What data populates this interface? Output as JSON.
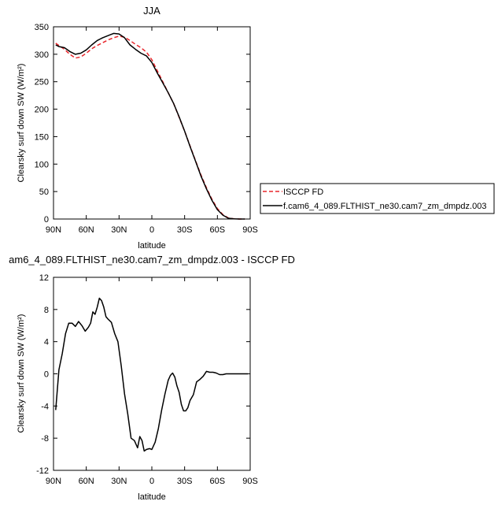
{
  "chart_data": [
    {
      "type": "line",
      "title": "JJA",
      "xlabel": "latitude",
      "ylabel": "Clearsky surf down SW (W/m²)",
      "ylim": [
        0,
        350
      ],
      "yticks": [
        0,
        50,
        100,
        150,
        200,
        250,
        300,
        350
      ],
      "xlim": [
        90,
        -90
      ],
      "xticks": [
        90,
        60,
        30,
        0,
        -30,
        -60,
        -90
      ],
      "xticklabels": [
        "90N",
        "60N",
        "30N",
        "0",
        "30S",
        "60S",
        "90S"
      ],
      "legend": {
        "placement": "right",
        "entries": [
          "ISCCP FD",
          "f.cam6_4_089.FLTHIST_ne30.cam7_zm_dmpdz.003"
        ]
      },
      "series": [
        {
          "name": "ISCCP FD",
          "color": "#e8252a",
          "dash": true,
          "x": [
            88,
            85,
            80,
            75,
            70,
            65,
            60,
            55,
            50,
            45,
            40,
            35,
            30,
            25,
            20,
            15,
            10,
            5,
            0,
            -5,
            -10,
            -15,
            -20,
            -25,
            -30,
            -35,
            -40,
            -45,
            -50,
            -55,
            -60,
            -65,
            -70,
            -75,
            -80,
            -85
          ],
          "values": [
            320,
            316,
            309,
            300,
            293,
            295,
            302,
            310,
            316,
            321,
            326,
            330,
            333,
            331,
            325,
            318,
            312,
            304,
            290,
            270,
            250,
            230,
            210,
            185,
            160,
            133,
            106,
            80,
            57,
            36,
            19,
            8,
            2,
            0.5,
            0,
            0
          ]
        },
        {
          "name": "f.cam6_4_089.FLTHIST_ne30.cam7_zm_dmpdz.003",
          "color": "#000000",
          "dash": false,
          "x": [
            88,
            85,
            80,
            75,
            70,
            65,
            60,
            55,
            50,
            45,
            40,
            35,
            30,
            25,
            20,
            15,
            10,
            5,
            0,
            -5,
            -10,
            -15,
            -20,
            -25,
            -30,
            -35,
            -40,
            -45,
            -50,
            -55,
            -60,
            -65,
            -70,
            -75,
            -80,
            -85
          ],
          "values": [
            317,
            314,
            312,
            305,
            300,
            302,
            308,
            317,
            325,
            330,
            334,
            338,
            337,
            330,
            317,
            309,
            302,
            297,
            285,
            266,
            248,
            230,
            210,
            186,
            160,
            132,
            105,
            78,
            55,
            34,
            17,
            7,
            1.5,
            0.3,
            0,
            0
          ]
        }
      ]
    },
    {
      "type": "line",
      "title": "am6_4_089.FLTHIST_ne30.cam7_zm_dmpdz.003 - ISCCP FD",
      "xlabel": "latitude",
      "ylabel": "Clearsky surf down SW (W/m²)",
      "ylim": [
        -12,
        12
      ],
      "yticks": [
        -12,
        -8,
        -4,
        0,
        4,
        8,
        12
      ],
      "xlim": [
        90,
        -90
      ],
      "xticks": [
        90,
        60,
        30,
        0,
        -30,
        -60,
        -90
      ],
      "xticklabels": [
        "90N",
        "60N",
        "30N",
        "0",
        "30S",
        "60S",
        "90S"
      ],
      "series": [
        {
          "name": "",
          "color": "#000000",
          "dash": false,
          "x": [
            88,
            85,
            82,
            79,
            76,
            73,
            70,
            67,
            64,
            61,
            58,
            56,
            54,
            52,
            50,
            48,
            46,
            44,
            42,
            40,
            37,
            34,
            31,
            28,
            25,
            22,
            19,
            16,
            13,
            11,
            9,
            7,
            5,
            2,
            0,
            -3,
            -6,
            -9,
            -12,
            -15,
            -17,
            -19,
            -21,
            -23,
            -25,
            -27,
            -29,
            -31,
            -33,
            -35,
            -38,
            -41,
            -44,
            -47,
            -50,
            -53,
            -56,
            -59,
            -62,
            -65,
            -68,
            -71,
            -74,
            -77,
            -80,
            -85,
            -88
          ],
          "values": [
            -4.5,
            0.5,
            2.5,
            5,
            6.3,
            6.3,
            5.9,
            6.5,
            6.0,
            5.3,
            5.8,
            6.3,
            7.7,
            7.4,
            8.3,
            9.4,
            9.1,
            8.3,
            7.1,
            6.8,
            6.4,
            5.0,
            4.0,
            1.0,
            -2.5,
            -5.0,
            -8.0,
            -8.3,
            -9.2,
            -7.8,
            -8.3,
            -9.6,
            -9.4,
            -9.3,
            -9.4,
            -8.5,
            -6.8,
            -4.5,
            -2.5,
            -0.8,
            -0.2,
            0.1,
            -0.4,
            -1.5,
            -2.3,
            -3.8,
            -4.6,
            -4.6,
            -4.2,
            -3.3,
            -2.6,
            -1.0,
            -0.7,
            -0.3,
            0.3,
            0.2,
            0.2,
            0.1,
            -0.1,
            -0.1,
            0,
            0,
            0,
            0,
            0,
            0,
            0
          ]
        }
      ]
    }
  ]
}
